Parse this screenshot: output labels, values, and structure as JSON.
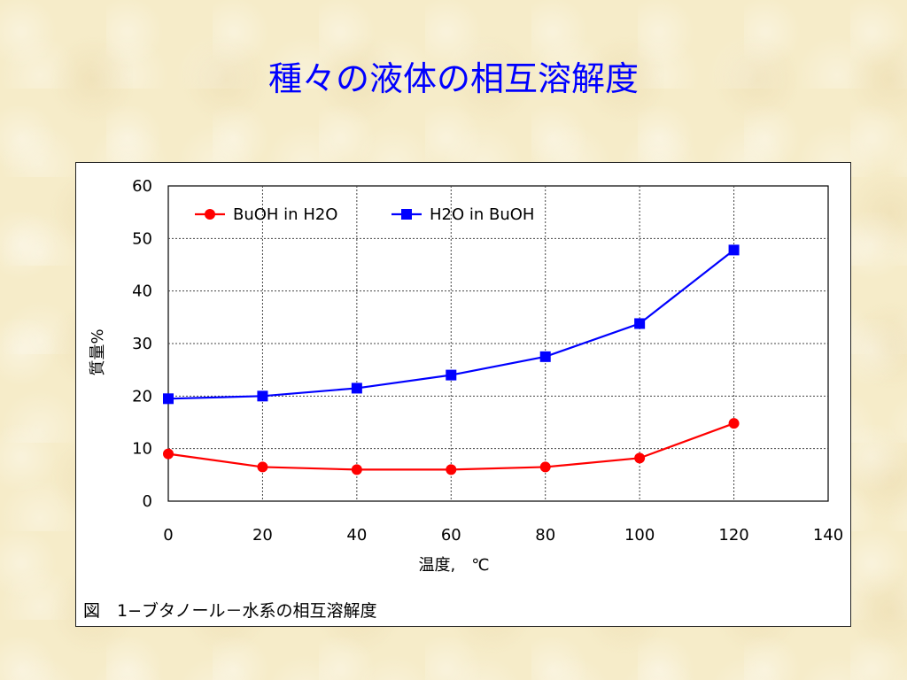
{
  "slide": {
    "title": "種々の液体の相互溶解度",
    "caption": "図　1−ブタノール－水系の相互溶解度"
  },
  "chart_data": {
    "type": "line",
    "xlabel": "温度,　℃",
    "ylabel": "質量%",
    "xlim": [
      0,
      140
    ],
    "ylim": [
      0,
      60
    ],
    "xticks": [
      0,
      20,
      40,
      60,
      80,
      100,
      120,
      140
    ],
    "yticks": [
      0,
      10,
      20,
      30,
      40,
      50,
      60
    ],
    "grid": true,
    "legend_position": "top-left",
    "series": [
      {
        "name": "BuOH in H2O",
        "color": "#ff0000",
        "marker": "circle",
        "x": [
          0,
          20,
          40,
          60,
          80,
          100,
          120
        ],
        "y": [
          9.0,
          6.5,
          6.0,
          6.0,
          6.5,
          8.2,
          14.8
        ]
      },
      {
        "name": "H2O in BuOH",
        "color": "#0000ff",
        "marker": "square",
        "x": [
          0,
          20,
          40,
          60,
          80,
          100,
          120
        ],
        "y": [
          19.5,
          20.0,
          21.5,
          24.0,
          27.5,
          33.8,
          47.8
        ]
      }
    ]
  }
}
